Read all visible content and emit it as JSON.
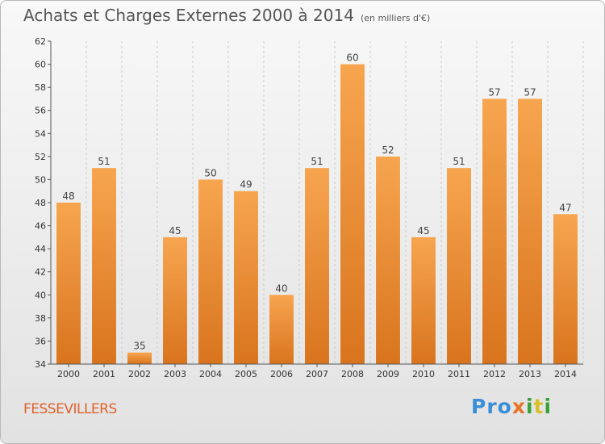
{
  "header": {
    "title": "Achats et Charges Externes 2000 à 2014",
    "subtitle": "(en milliers d'€)"
  },
  "commune": "FESSEVILLERS",
  "logo": {
    "text": "Proxiti"
  },
  "colors": {
    "bar_light": "#f7a54f",
    "bar_dark": "#d9741e",
    "grid": "#cccccc"
  },
  "chart_data": {
    "type": "bar",
    "title": "Achats et Charges Externes 2000 à 2014",
    "subtitle": "(en milliers d'€)",
    "categories": [
      "2000",
      "2001",
      "2002",
      "2003",
      "2004",
      "2005",
      "2006",
      "2007",
      "2008",
      "2009",
      "2010",
      "2011",
      "2012",
      "2013",
      "2014"
    ],
    "values": [
      48,
      51,
      35,
      45,
      50,
      49,
      40,
      51,
      60,
      52,
      45,
      51,
      57,
      57,
      47
    ],
    "ylim": [
      34,
      62
    ],
    "yticks": [
      34,
      36,
      38,
      40,
      42,
      44,
      46,
      48,
      50,
      52,
      54,
      56,
      58,
      60,
      62
    ],
    "grid": true,
    "data_labels": true
  }
}
